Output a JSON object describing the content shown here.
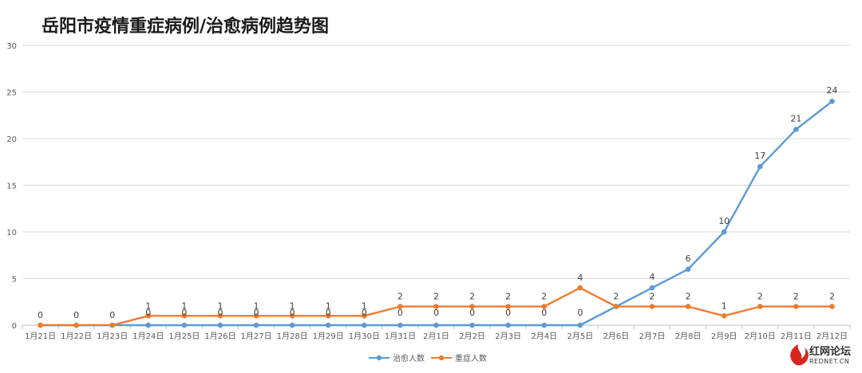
{
  "chart_data": {
    "type": "line",
    "title": "岳阳市疫情重症病例/治愈病例趋势图",
    "categories": [
      "1月21日",
      "1月22日",
      "1月23日",
      "1月24日",
      "1月25日",
      "1月26日",
      "1月27日",
      "1月28日",
      "1月29日",
      "1月30日",
      "1月31日",
      "2月1日",
      "2月2日",
      "2月3日",
      "2月4日",
      "2月5日",
      "2月6日",
      "2月7日",
      "2月8日",
      "2月9日",
      "2月10日",
      "2月11日",
      "2月12日"
    ],
    "y_ticks": [
      "0",
      "5",
      "10",
      "15",
      "20",
      "25",
      "30"
    ],
    "ylim": [
      0,
      30
    ],
    "grid": true,
    "legend_position": "bottom",
    "series": [
      {
        "name": "治愈人数",
        "color": "#5b9bd5",
        "values": [
          0,
          0,
          0,
          0,
          0,
          0,
          0,
          0,
          0,
          0,
          0,
          0,
          0,
          0,
          0,
          0,
          2,
          4,
          6,
          10,
          17,
          21,
          24
        ],
        "labels": [
          "",
          "",
          "",
          "0",
          "0",
          "0",
          "0",
          "0",
          "0",
          "0",
          "0",
          "0",
          "0",
          "0",
          "0",
          "0",
          "",
          "4",
          "6",
          "10",
          "17",
          "21",
          "24"
        ]
      },
      {
        "name": "重症人数",
        "color": "#ed7d31",
        "values": [
          0,
          0,
          0,
          1,
          1,
          1,
          1,
          1,
          1,
          1,
          2,
          2,
          2,
          2,
          2,
          4,
          2,
          2,
          2,
          1,
          2,
          2,
          2
        ],
        "labels": [
          "0",
          "0",
          "0",
          "1",
          "1",
          "1",
          "1",
          "1",
          "1",
          "1",
          "2",
          "2",
          "2",
          "2",
          "2",
          "4",
          "2",
          "2",
          "2",
          "1",
          "2",
          "2",
          "2"
        ]
      }
    ]
  },
  "watermark": {
    "name": "红网论坛",
    "sub": "REDNET.CN",
    "color": "#d9261c"
  }
}
